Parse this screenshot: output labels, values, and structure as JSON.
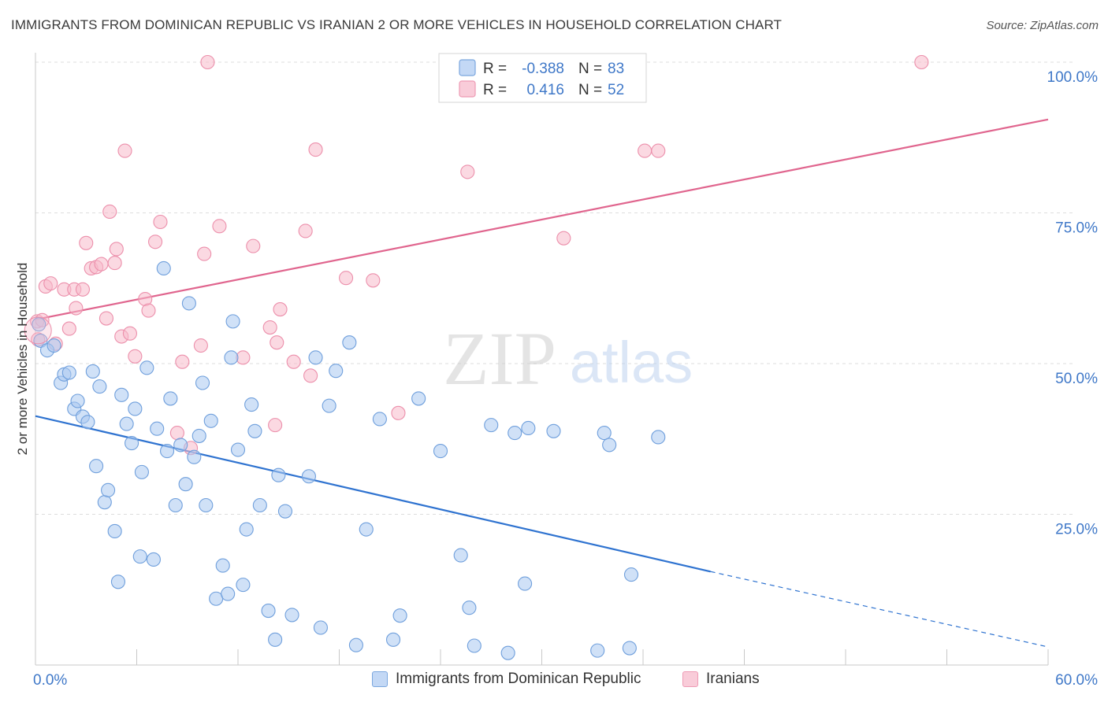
{
  "title": "IMMIGRANTS FROM DOMINICAN REPUBLIC VS IRANIAN 2 OR MORE VEHICLES IN HOUSEHOLD CORRELATION CHART",
  "source": "Source: ZipAtlas.com",
  "watermark": {
    "zip": "ZIP",
    "atlas": "atlas"
  },
  "colors": {
    "blue_fill": "#a9c8f0",
    "blue_stroke": "#6f9fdc",
    "blue_line": "#2f73d0",
    "pink_fill": "#f7b9cb",
    "pink_stroke": "#ec8fab",
    "pink_line": "#e0658e",
    "axis_text": "#3f78c8",
    "grid": "#dddddd"
  },
  "legend": [
    {
      "r_label": "R =",
      "r_value": "-0.388",
      "n_label": "N =",
      "n_value": "83"
    },
    {
      "r_label": "R =",
      "r_value": "0.416",
      "n_label": "N =",
      "n_value": "52"
    }
  ],
  "chart_data": {
    "type": "scatter",
    "title": "IMMIGRANTS FROM DOMINICAN REPUBLIC VS IRANIAN 2 OR MORE VEHICLES IN HOUSEHOLD CORRELATION CHART",
    "xlabel": "",
    "ylabel": "2 or more Vehicles in Household",
    "xlim": [
      0,
      60
    ],
    "ylim": [
      0,
      100
    ],
    "x_tick_labels": [
      "0.0%",
      "60.0%"
    ],
    "y_ticks": [
      25,
      50,
      75,
      100
    ],
    "y_tick_labels": [
      "25.0%",
      "50.0%",
      "75.0%",
      "100.0%"
    ],
    "grid": true,
    "legend_position": "top-center",
    "series": [
      {
        "name": "Immigrants from Dominican Republic",
        "color": "#a9c8f0",
        "trend": {
          "x": [
            0,
            40
          ],
          "y": [
            41.3,
            15.5
          ],
          "extension_to_x": 60,
          "extension_y": 3.0
        },
        "points": [
          [
            0.2,
            56.5
          ],
          [
            0.3,
            53.8
          ],
          [
            0.7,
            52.2
          ],
          [
            1.1,
            53.0
          ],
          [
            1.5,
            46.8
          ],
          [
            1.7,
            48.2
          ],
          [
            2.0,
            48.5
          ],
          [
            2.3,
            42.5
          ],
          [
            2.5,
            43.8
          ],
          [
            2.8,
            41.2
          ],
          [
            3.1,
            40.3
          ],
          [
            3.4,
            48.7
          ],
          [
            3.6,
            33.0
          ],
          [
            3.8,
            46.2
          ],
          [
            4.1,
            27.0
          ],
          [
            4.3,
            29.0
          ],
          [
            4.7,
            22.2
          ],
          [
            4.9,
            13.8
          ],
          [
            5.1,
            44.8
          ],
          [
            5.4,
            40.0
          ],
          [
            5.7,
            36.8
          ],
          [
            5.9,
            42.5
          ],
          [
            6.2,
            18.0
          ],
          [
            6.3,
            32.0
          ],
          [
            6.6,
            49.3
          ],
          [
            7.0,
            17.5
          ],
          [
            7.2,
            39.2
          ],
          [
            7.6,
            65.8
          ],
          [
            7.8,
            35.5
          ],
          [
            8.0,
            44.2
          ],
          [
            8.3,
            26.5
          ],
          [
            8.6,
            36.5
          ],
          [
            8.9,
            30.0
          ],
          [
            9.1,
            60.0
          ],
          [
            9.4,
            34.5
          ],
          [
            9.7,
            38.0
          ],
          [
            9.9,
            46.8
          ],
          [
            10.1,
            26.5
          ],
          [
            10.4,
            40.5
          ],
          [
            10.7,
            11.0
          ],
          [
            11.1,
            16.5
          ],
          [
            11.4,
            11.8
          ],
          [
            11.6,
            51.0
          ],
          [
            11.7,
            57.0
          ],
          [
            12.0,
            35.7
          ],
          [
            12.3,
            13.3
          ],
          [
            12.5,
            22.5
          ],
          [
            12.8,
            43.2
          ],
          [
            13.0,
            38.8
          ],
          [
            13.3,
            26.5
          ],
          [
            13.8,
            9.0
          ],
          [
            14.2,
            4.2
          ],
          [
            14.4,
            31.5
          ],
          [
            14.8,
            25.5
          ],
          [
            15.2,
            8.3
          ],
          [
            16.2,
            31.3
          ],
          [
            16.6,
            51.0
          ],
          [
            16.9,
            6.2
          ],
          [
            17.4,
            43.0
          ],
          [
            17.8,
            48.8
          ],
          [
            18.6,
            53.5
          ],
          [
            19.0,
            3.3
          ],
          [
            19.6,
            22.5
          ],
          [
            20.4,
            40.8
          ],
          [
            21.2,
            4.2
          ],
          [
            21.6,
            8.2
          ],
          [
            22.7,
            44.2
          ],
          [
            24.0,
            35.5
          ],
          [
            25.2,
            18.2
          ],
          [
            25.7,
            9.5
          ],
          [
            26.0,
            3.2
          ],
          [
            27.0,
            39.8
          ],
          [
            28.0,
            2.0
          ],
          [
            28.4,
            38.5
          ],
          [
            29.0,
            13.5
          ],
          [
            29.2,
            39.3
          ],
          [
            30.7,
            38.8
          ],
          [
            33.3,
            2.4
          ],
          [
            33.7,
            38.5
          ],
          [
            34.0,
            36.5
          ],
          [
            35.3,
            15.0
          ],
          [
            36.9,
            37.8
          ],
          [
            35.2,
            2.8
          ]
        ]
      },
      {
        "name": "Iranians",
        "color": "#f7b9cb",
        "trend": {
          "x": [
            0,
            60
          ],
          "y": [
            57.3,
            90.5
          ]
        },
        "points": [
          [
            0.1,
            57.0
          ],
          [
            0.4,
            57.2
          ],
          [
            0.6,
            62.8
          ],
          [
            0.9,
            63.3
          ],
          [
            1.2,
            53.3
          ],
          [
            1.7,
            62.3
          ],
          [
            2.0,
            55.8
          ],
          [
            2.3,
            62.3
          ],
          [
            2.4,
            59.2
          ],
          [
            2.8,
            62.3
          ],
          [
            3.0,
            70.0
          ],
          [
            3.3,
            65.8
          ],
          [
            3.6,
            66.0
          ],
          [
            3.9,
            66.5
          ],
          [
            4.2,
            57.5
          ],
          [
            4.4,
            75.2
          ],
          [
            4.7,
            66.7
          ],
          [
            4.8,
            69.0
          ],
          [
            5.1,
            54.5
          ],
          [
            5.3,
            85.3
          ],
          [
            5.6,
            55.0
          ],
          [
            5.9,
            51.2
          ],
          [
            6.5,
            60.7
          ],
          [
            6.7,
            58.8
          ],
          [
            7.1,
            70.2
          ],
          [
            7.4,
            73.5
          ],
          [
            8.4,
            38.5
          ],
          [
            8.7,
            50.3
          ],
          [
            9.2,
            36.0
          ],
          [
            9.8,
            53.0
          ],
          [
            10.0,
            68.2
          ],
          [
            10.2,
            100.0
          ],
          [
            10.9,
            72.8
          ],
          [
            12.3,
            51.0
          ],
          [
            12.9,
            69.5
          ],
          [
            13.9,
            56.0
          ],
          [
            14.2,
            39.8
          ],
          [
            14.3,
            53.5
          ],
          [
            14.5,
            59.0
          ],
          [
            15.3,
            50.3
          ],
          [
            16.0,
            72.0
          ],
          [
            16.3,
            48.0
          ],
          [
            16.6,
            85.5
          ],
          [
            18.4,
            64.2
          ],
          [
            20.0,
            63.8
          ],
          [
            21.5,
            41.8
          ],
          [
            25.6,
            81.8
          ],
          [
            31.3,
            70.8
          ],
          [
            36.1,
            85.3
          ],
          [
            36.9,
            85.3
          ],
          [
            52.5,
            100.0
          ],
          [
            0.15,
            54.0
          ]
        ]
      }
    ]
  }
}
